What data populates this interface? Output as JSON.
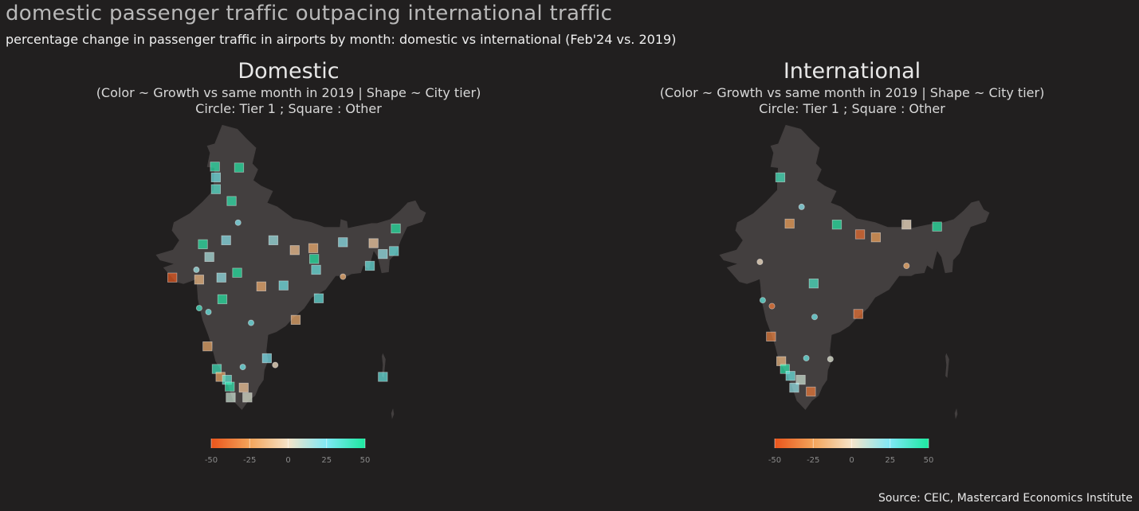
{
  "header": {
    "title": "domestic passenger traffic outpacing international traffic",
    "subtitle": "percentage change in passenger traffic in airports by month: domestic vs international (Feb'24 vs. 2019)"
  },
  "panels": [
    {
      "title": "Domestic",
      "subtitle_line1": "(Color ~ Growth vs same month in 2019 | Shape ~ City tier)",
      "subtitle_line2": "Circle: Tier 1 ; Square : Other"
    },
    {
      "title": "International",
      "subtitle_line1": "(Color ~ Growth vs same month in 2019 | Shape ~ City tier)",
      "subtitle_line2": "Circle: Tier 1 ; Square : Other"
    }
  ],
  "legend": {
    "ticks": [
      "-50",
      "-25",
      "0",
      "25",
      "50"
    ],
    "tick_values": [
      -50,
      -25,
      0,
      25,
      50
    ],
    "range": [
      -50,
      50
    ],
    "colors": [
      "#e9541b",
      "#f4a45a",
      "#f5e3c8",
      "#7fe8f5",
      "#1de9a0"
    ]
  },
  "colors": {
    "background": "#211f1f",
    "land": "#433f3f",
    "scale_low": "#e9541b",
    "scale_mid": "#f5e3c8",
    "scale_high": "#1de9a0"
  },
  "markers": {
    "domestic": [
      {
        "lon": 74.6,
        "lat": 32.7,
        "tier": "other",
        "growth": 45
      },
      {
        "lon": 77.2,
        "lat": 32.6,
        "tier": "other",
        "growth": 48
      },
      {
        "lon": 74.7,
        "lat": 31.6,
        "tier": "other",
        "growth": 28
      },
      {
        "lon": 74.7,
        "lat": 30.4,
        "tier": "other",
        "growth": 35
      },
      {
        "lon": 76.4,
        "lat": 29.2,
        "tier": "other",
        "growth": 45
      },
      {
        "lon": 77.1,
        "lat": 27.0,
        "tier": "tier1",
        "growth": 24
      },
      {
        "lon": 73.3,
        "lat": 24.8,
        "tier": "other",
        "growth": 47
      },
      {
        "lon": 75.8,
        "lat": 25.2,
        "tier": "other",
        "growth": 22
      },
      {
        "lon": 80.9,
        "lat": 25.2,
        "tier": "other",
        "growth": 18
      },
      {
        "lon": 83.2,
        "lat": 24.2,
        "tier": "other",
        "growth": -12
      },
      {
        "lon": 85.2,
        "lat": 24.4,
        "tier": "other",
        "growth": -20
      },
      {
        "lon": 88.4,
        "lat": 25.0,
        "tier": "other",
        "growth": 22
      },
      {
        "lon": 91.7,
        "lat": 24.9,
        "tier": "other",
        "growth": -8
      },
      {
        "lon": 94.1,
        "lat": 26.4,
        "tier": "other",
        "growth": 48
      },
      {
        "lon": 92.7,
        "lat": 23.8,
        "tier": "other",
        "growth": 20
      },
      {
        "lon": 93.9,
        "lat": 24.1,
        "tier": "other",
        "growth": 30
      },
      {
        "lon": 91.3,
        "lat": 22.6,
        "tier": "other",
        "growth": 30
      },
      {
        "lon": 85.3,
        "lat": 23.3,
        "tier": "other",
        "growth": 48
      },
      {
        "lon": 85.5,
        "lat": 22.2,
        "tier": "other",
        "growth": 30
      },
      {
        "lon": 88.4,
        "lat": 21.5,
        "tier": "tier1",
        "growth": -18
      },
      {
        "lon": 74.0,
        "lat": 23.5,
        "tier": "other",
        "growth": 15
      },
      {
        "lon": 70.0,
        "lat": 21.4,
        "tier": "other",
        "growth": -48
      },
      {
        "lon": 72.6,
        "lat": 22.2,
        "tier": "tier1",
        "growth": 18
      },
      {
        "lon": 72.9,
        "lat": 21.2,
        "tier": "other",
        "growth": -15
      },
      {
        "lon": 75.3,
        "lat": 21.4,
        "tier": "other",
        "growth": 20
      },
      {
        "lon": 77.0,
        "lat": 21.9,
        "tier": "other",
        "growth": 48
      },
      {
        "lon": 79.6,
        "lat": 20.5,
        "tier": "other",
        "growth": -20
      },
      {
        "lon": 82.0,
        "lat": 20.6,
        "tier": "other",
        "growth": 28
      },
      {
        "lon": 85.8,
        "lat": 19.3,
        "tier": "other",
        "growth": 30
      },
      {
        "lon": 72.9,
        "lat": 18.3,
        "tier": "tier1",
        "growth": 38
      },
      {
        "lon": 73.9,
        "lat": 17.9,
        "tier": "tier1",
        "growth": 30
      },
      {
        "lon": 75.4,
        "lat": 19.2,
        "tier": "other",
        "growth": 48
      },
      {
        "lon": 78.5,
        "lat": 16.8,
        "tier": "tier1",
        "growth": 28
      },
      {
        "lon": 83.3,
        "lat": 17.1,
        "tier": "other",
        "growth": -20
      },
      {
        "lon": 73.8,
        "lat": 14.4,
        "tier": "other",
        "growth": -20
      },
      {
        "lon": 80.2,
        "lat": 13.2,
        "tier": "other",
        "growth": 25
      },
      {
        "lon": 81.1,
        "lat": 12.5,
        "tier": "tier1",
        "growth": 0
      },
      {
        "lon": 77.6,
        "lat": 12.3,
        "tier": "tier1",
        "growth": 28
      },
      {
        "lon": 74.8,
        "lat": 12.1,
        "tier": "other",
        "growth": 40
      },
      {
        "lon": 75.2,
        "lat": 11.3,
        "tier": "other",
        "growth": -20
      },
      {
        "lon": 75.9,
        "lat": 11.0,
        "tier": "other",
        "growth": 35
      },
      {
        "lon": 76.2,
        "lat": 10.3,
        "tier": "other",
        "growth": 45
      },
      {
        "lon": 77.7,
        "lat": 10.2,
        "tier": "other",
        "growth": -10
      },
      {
        "lon": 76.3,
        "lat": 9.2,
        "tier": "other",
        "growth": 8
      },
      {
        "lon": 78.1,
        "lat": 9.2,
        "tier": "other",
        "growth": 5
      },
      {
        "lon": 92.7,
        "lat": 11.3,
        "tier": "other",
        "growth": 30
      }
    ],
    "international": [
      {
        "lon": 74.8,
        "lat": 31.6,
        "tier": "other",
        "growth": 40
      },
      {
        "lon": 77.1,
        "lat": 28.6,
        "tier": "tier1",
        "growth": 22
      },
      {
        "lon": 75.8,
        "lat": 26.9,
        "tier": "other",
        "growth": -25
      },
      {
        "lon": 80.9,
        "lat": 26.8,
        "tier": "other",
        "growth": 48
      },
      {
        "lon": 83.4,
        "lat": 25.8,
        "tier": "other",
        "growth": -42
      },
      {
        "lon": 85.1,
        "lat": 25.5,
        "tier": "other",
        "growth": -25
      },
      {
        "lon": 88.4,
        "lat": 26.8,
        "tier": "other",
        "growth": 0
      },
      {
        "lon": 91.7,
        "lat": 26.6,
        "tier": "other",
        "growth": 48
      },
      {
        "lon": 88.4,
        "lat": 22.6,
        "tier": "tier1",
        "growth": -20
      },
      {
        "lon": 72.6,
        "lat": 23.0,
        "tier": "tier1",
        "growth": 0
      },
      {
        "lon": 78.4,
        "lat": 20.8,
        "tier": "other",
        "growth": 38
      },
      {
        "lon": 72.9,
        "lat": 19.1,
        "tier": "tier1",
        "growth": 32
      },
      {
        "lon": 73.9,
        "lat": 18.5,
        "tier": "tier1",
        "growth": -38
      },
      {
        "lon": 78.5,
        "lat": 17.4,
        "tier": "tier1",
        "growth": 28
      },
      {
        "lon": 83.2,
        "lat": 17.7,
        "tier": "other",
        "growth": -40
      },
      {
        "lon": 73.8,
        "lat": 15.4,
        "tier": "other",
        "growth": -35
      },
      {
        "lon": 77.6,
        "lat": 13.2,
        "tier": "tier1",
        "growth": 30
      },
      {
        "lon": 80.2,
        "lat": 13.1,
        "tier": "tier1",
        "growth": 5
      },
      {
        "lon": 74.9,
        "lat": 12.9,
        "tier": "other",
        "growth": -15
      },
      {
        "lon": 75.3,
        "lat": 12.1,
        "tier": "other",
        "growth": 45
      },
      {
        "lon": 75.9,
        "lat": 11.4,
        "tier": "other",
        "growth": 30
      },
      {
        "lon": 77.0,
        "lat": 11.0,
        "tier": "other",
        "growth": 8
      },
      {
        "lon": 76.3,
        "lat": 10.2,
        "tier": "other",
        "growth": 20
      },
      {
        "lon": 78.1,
        "lat": 9.8,
        "tier": "other",
        "growth": -38
      }
    ]
  },
  "source": "Source: CEIC, Mastercard Economics Institute"
}
